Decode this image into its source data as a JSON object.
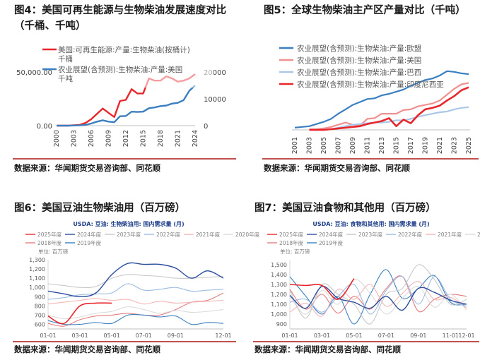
{
  "panels": {
    "p1": {
      "title_line1": "图4：美国可再生能源与生物柴油发展速度对比",
      "title_line2": "（千桶、千吨）",
      "source": "数据来源：华闻期货交易咨询部、同花顺"
    },
    "p2": {
      "title": "图5：全球生物柴油主产区产量对比（千吨）",
      "source": "数据来源：华闻期货交易咨询部、同花顺"
    },
    "p3": {
      "title": "图6：美国豆油生物柴油用（百万磅）",
      "source": "数据来源：华闻期货交易咨询部、同花顺"
    },
    "p4": {
      "title": "图7：美国豆油食物和其他用（百万磅）",
      "source": "数据来源：华闻期货交易咨询部、同花顺"
    }
  },
  "chart_data": [
    {
      "type": "line",
      "x_ticks": [
        "2000",
        "2003",
        "2006",
        "2009",
        "2012",
        "2015",
        "2018",
        "2021",
        "2024"
      ],
      "ylim_left": [
        0,
        75000
      ],
      "ylim_right": [
        0,
        30000
      ],
      "y_ticks_left": [
        "0.00",
        "50,000.00"
      ],
      "y_ticks_right": [
        "0",
        "10000",
        "20000"
      ],
      "series": [
        {
          "name": "美国:可再生能源:产量:生物柴油(按桶计)千桶",
          "axis": "left",
          "color": "#e8262b",
          "x": [
            2000,
            2001,
            2002,
            2003,
            2004,
            2005,
            2006,
            2007,
            2008,
            2009,
            2010,
            2011,
            2012,
            2013,
            2014,
            2015,
            2016,
            2017,
            2018,
            2019,
            2020,
            2021,
            2022,
            2023,
            2024
          ],
          "values": [
            0,
            0,
            0,
            300,
            700,
            2500,
            6000,
            11000,
            16000,
            12000,
            8000,
            23000,
            24000,
            34000,
            30000,
            30000,
            44000,
            42000,
            42000,
            46000,
            44000,
            41000,
            42000,
            44000,
            48000
          ]
        },
        {
          "name": "农业展望(含预测):生物柴油:产量:美国 千吨",
          "axis": "right",
          "color": "#3b7fc0",
          "x": [
            2000,
            2001,
            2002,
            2003,
            2004,
            2005,
            2006,
            2007,
            2008,
            2009,
            2010,
            2011,
            2012,
            2013,
            2014,
            2015,
            2016,
            2017,
            2018,
            2019,
            2020,
            2021,
            2022,
            2023,
            2024
          ],
          "values": [
            0,
            0,
            0,
            50,
            100,
            300,
            800,
            1500,
            2000,
            1500,
            1300,
            3500,
            3600,
            5200,
            5100,
            5200,
            6500,
            6800,
            7300,
            7500,
            8200,
            8500,
            9500,
            13000,
            15000
          ]
        }
      ]
    },
    {
      "type": "line",
      "x_ticks": [
        "2001",
        "2003",
        "2005",
        "2007",
        "2009",
        "2011",
        "2013",
        "2015",
        "2017",
        "2019",
        "2021",
        "2023",
        "2025"
      ],
      "ylim": [
        0,
        100
      ],
      "series": [
        {
          "name": "农业展望(含预测):生物柴油:产量:欧盟",
          "color": "#3b7fc0",
          "x": [
            2001,
            2002,
            2003,
            2004,
            2005,
            2006,
            2007,
            2008,
            2009,
            2010,
            2011,
            2012,
            2013,
            2014,
            2015,
            2016,
            2017,
            2018,
            2019,
            2020,
            2021,
            2022,
            2023,
            2024,
            2025
          ],
          "values": [
            3,
            4,
            5,
            8,
            11,
            15,
            22,
            28,
            34,
            38,
            42,
            43,
            47,
            49,
            52,
            55,
            60,
            64,
            68,
            70,
            74,
            80,
            79,
            77,
            76
          ]
        },
        {
          "name": "农业展望(含预测):生物柴油:产量:美国",
          "color": "#f09090",
          "x": [
            2003,
            2004,
            2005,
            2006,
            2007,
            2008,
            2009,
            2010,
            2011,
            2012,
            2013,
            2014,
            2015,
            2016,
            2017,
            2018,
            2019,
            2020,
            2021,
            2022,
            2023,
            2024,
            2025
          ],
          "values": [
            1,
            1,
            2,
            4,
            7,
            10,
            7,
            6,
            15,
            16,
            22,
            22,
            22,
            27,
            28,
            32,
            34,
            36,
            40,
            48,
            56,
            62,
            64
          ]
        },
        {
          "name": "农业展望(含预测):生物柴油:产量:巴西",
          "color": "#a9c8e8",
          "x": [
            2003,
            2004,
            2005,
            2006,
            2007,
            2008,
            2009,
            2010,
            2011,
            2012,
            2013,
            2014,
            2015,
            2016,
            2017,
            2018,
            2019,
            2020,
            2021,
            2022,
            2023,
            2024,
            2025
          ],
          "values": [
            0,
            0,
            0,
            1,
            3,
            5,
            7,
            8,
            9,
            10,
            10,
            11,
            13,
            13,
            15,
            18,
            20,
            22,
            24,
            25,
            28,
            30,
            31
          ]
        },
        {
          "name": "农业展望(含预测):生物柴油:产量:印度尼西亚",
          "color": "#e8262b",
          "x": [
            2003,
            2004,
            2005,
            2006,
            2007,
            2008,
            2009,
            2010,
            2011,
            2012,
            2013,
            2014,
            2015,
            2016,
            2017,
            2018,
            2019,
            2020,
            2021,
            2022,
            2023,
            2024,
            2025
          ],
          "values": [
            0,
            0,
            0,
            1,
            2,
            3,
            4,
            5,
            8,
            10,
            12,
            16,
            5,
            14,
            9,
            20,
            28,
            30,
            33,
            40,
            46,
            54,
            58
          ]
        }
      ]
    },
    {
      "type": "line",
      "title": "USDA: 豆油: 生物柴油用: 国内需求量 (月)",
      "unit": "单位: 百万磅",
      "x_ticks": [
        "01-01",
        "03-01",
        "05-01",
        "07-01",
        "09-01",
        "12-01"
      ],
      "ylim": [
        550,
        1300
      ],
      "y_ticks": [
        "1,300",
        "1,200",
        "1,100",
        "1,000",
        "900",
        "800",
        "700",
        "600"
      ],
      "series": [
        {
          "name": "2025年度",
          "color": "#e8262b",
          "values": [
            690,
            610,
            800,
            830,
            830
          ]
        },
        {
          "name": "2024年度",
          "color": "#2c4f9e",
          "values": [
            960,
            930,
            900,
            940,
            1140,
            1260,
            1250,
            1250,
            1210,
            1100,
            1180,
            1100
          ]
        },
        {
          "name": "2023年度",
          "color": "#c8c8c8",
          "values": [
            1040,
            1020,
            1000,
            1010,
            1100,
            1140,
            1130,
            1120,
            1100,
            1100,
            1110,
            1120
          ]
        },
        {
          "name": "2022年度",
          "color": "#9dbce0",
          "values": [
            870,
            890,
            920,
            930,
            940,
            1040,
            970,
            980,
            1000,
            960,
            970,
            980
          ]
        },
        {
          "name": "2021年度",
          "color": "#f4b6b6",
          "values": [
            820,
            840,
            860,
            880,
            860,
            870,
            820,
            850,
            830,
            840,
            850,
            860
          ]
        },
        {
          "name": "2020年度",
          "color": "#dcdcdc",
          "values": [
            700,
            660,
            680,
            720,
            740,
            790,
            760,
            720,
            750,
            730,
            740,
            760
          ]
        },
        {
          "name": "2019年度",
          "color": "#3b7fc0",
          "values": [
            640,
            600,
            600,
            620,
            610,
            700,
            700,
            680,
            690,
            600,
            620,
            610
          ]
        },
        {
          "name": "2018年度",
          "color": "#e37d7d",
          "values": [
            610,
            580,
            650,
            690,
            700,
            720,
            700,
            700,
            760,
            840,
            860,
            940
          ]
        }
      ]
    },
    {
      "type": "line",
      "title": "USDA: 豆油: 食物和其他用: 国内需求量 (月)",
      "unit": "单位: 百万磅",
      "x_ticks": [
        "01-01",
        "03-01",
        "05-01",
        "07-01",
        "09-01",
        "11-01",
        "12-01"
      ],
      "ylim": [
        850,
        1550
      ],
      "y_ticks": [
        "1,500",
        "1,400",
        "1,300",
        "1,200",
        "1,100",
        "1,000",
        "900"
      ],
      "series": [
        {
          "name": "2025年度",
          "color": "#e8262b",
          "values": [
            1300,
            1290,
            1290,
            1150,
            1360
          ]
        },
        {
          "name": "2024年度",
          "color": "#2c4f9e",
          "values": [
            1190,
            1060,
            1280,
            1160,
            1120,
            1060,
            1180,
            1040,
            1260,
            1220,
            1140,
            1100
          ]
        },
        {
          "name": "2023年度",
          "color": "#c8c8c8",
          "values": [
            1240,
            960,
            1300,
            1200,
            1100,
            900,
            1200,
            1260,
            1500,
            1350,
            1100,
            1150
          ]
        },
        {
          "name": "2022年度",
          "color": "#9dbce0",
          "values": [
            1120,
            1150,
            1020,
            1180,
            1300,
            1000,
            1240,
            1380,
            1100,
            1380,
            1150,
            1080
          ]
        },
        {
          "name": "2021年度",
          "color": "#f4b6b6",
          "values": [
            1020,
            1110,
            980,
            1250,
            1150,
            1300,
            1080,
            1210,
            1330,
            1150,
            1170,
            1060
          ]
        },
        {
          "name": "2020年度",
          "color": "#dcdcdc",
          "values": [
            1180,
            1000,
            1240,
            1100,
            1350,
            1210,
            1000,
            1160,
            1280,
            1070,
            1200,
            1040
          ]
        },
        {
          "name": "2019年度",
          "color": "#3b7fc0",
          "values": [
            1380,
            1180,
            1000,
            1180,
            900,
            1200,
            1450,
            1160,
            1260,
            1390,
            1120,
            1100
          ]
        },
        {
          "name": "2018年度",
          "color": "#e37d7d",
          "values": [
            1250,
            1050,
            1200,
            1010,
            1180,
            1050,
            1260,
            1380,
            1030,
            1150,
            1200,
            1180
          ]
        }
      ]
    }
  ]
}
